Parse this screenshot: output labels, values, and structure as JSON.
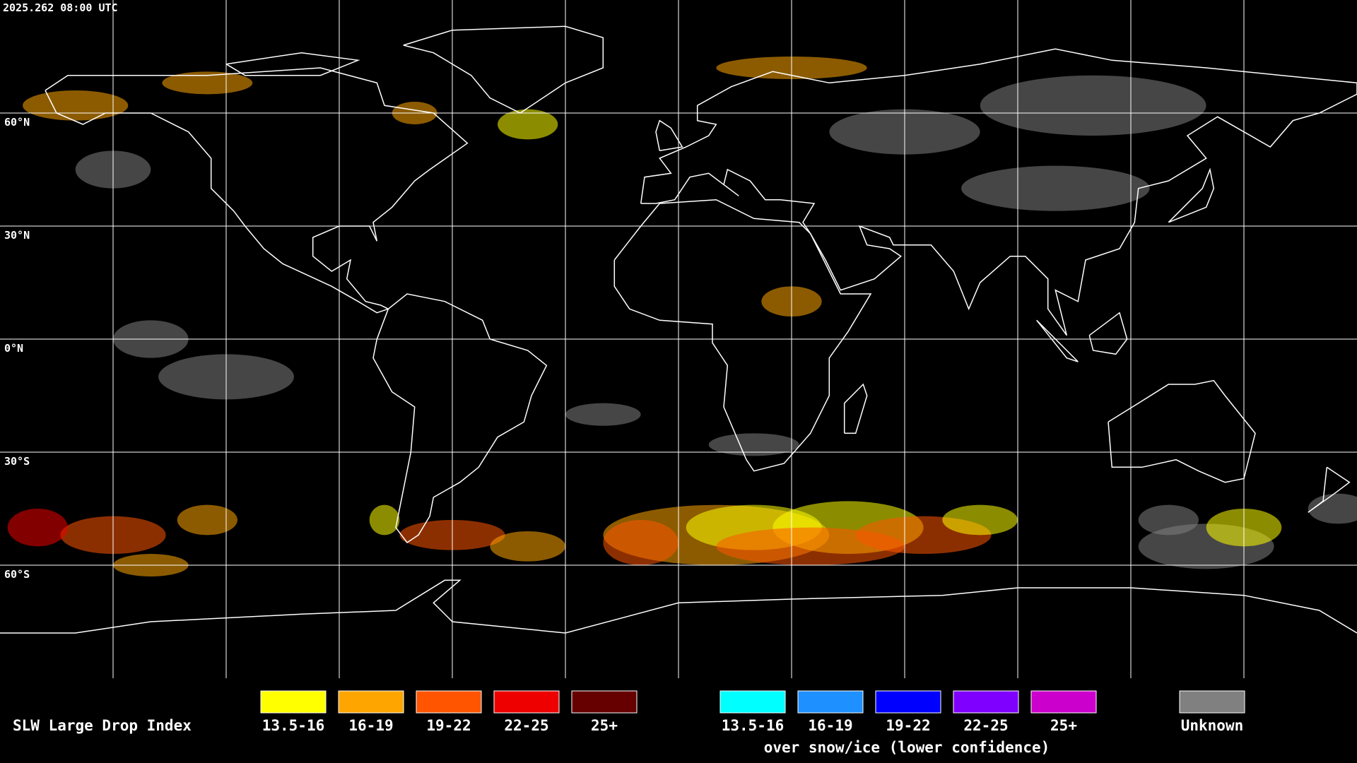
{
  "timestamp": "2025.262 08:00 UTC",
  "map": {
    "lat_labels": [
      "60°N",
      "30°N",
      "0°N",
      "30°S",
      "60°S"
    ]
  },
  "legend": {
    "title": "SLW Large Drop Index",
    "groups": [
      {
        "items": [
          {
            "label": "13.5-16",
            "color": "#ffff00"
          },
          {
            "label": "16-19",
            "color": "#ffa500"
          },
          {
            "label": "19-22",
            "color": "#ff5500"
          },
          {
            "label": "22-25",
            "color": "#ee0000"
          },
          {
            "label": "25+",
            "color": "#660000"
          }
        ]
      },
      {
        "items": [
          {
            "label": "13.5-16",
            "color": "#00ffff"
          },
          {
            "label": "16-19",
            "color": "#1e90ff"
          },
          {
            "label": "19-22",
            "color": "#0000ff"
          },
          {
            "label": "22-25",
            "color": "#7f00ff"
          },
          {
            "label": "25+",
            "color": "#cc00cc"
          }
        ]
      }
    ],
    "note": "over snow/ice (lower confidence)",
    "unknown": {
      "label": "Unknown",
      "color": "#808080"
    }
  }
}
